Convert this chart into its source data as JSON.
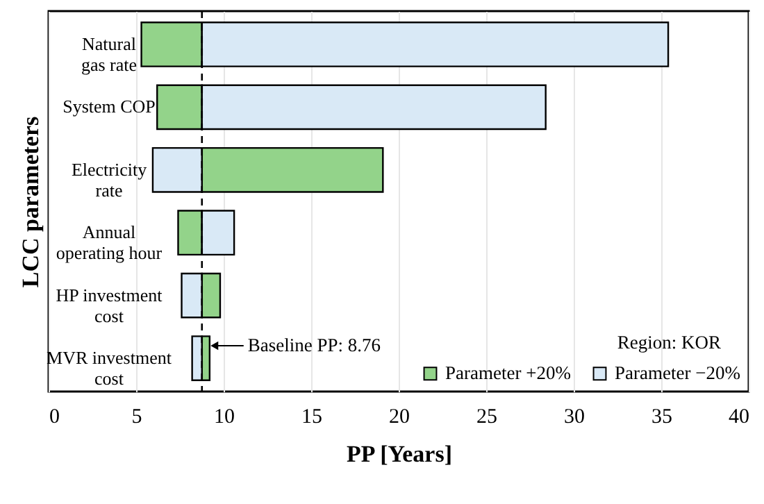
{
  "chart_data": {
    "type": "bar",
    "orientation": "horizontal",
    "xlabel": "PP [Years]",
    "ylabel": "LCC parameters",
    "categories": [
      "Natural\ngas rate",
      "System COP",
      "Electricity\nrate",
      "Annual\noperating hour",
      "HP investment\ncost",
      "MVR investment\ncost"
    ],
    "series": [
      {
        "name": "Parameter +20%",
        "color": "#93d38a",
        "base": [
          5.3,
          6.2,
          8.76,
          7.4,
          8.76,
          8.76
        ],
        "values": [
          3.46,
          2.56,
          10.34,
          1.36,
          1.04,
          0.44
        ]
      },
      {
        "name": "Parameter −20%",
        "color": "#d9e9f6",
        "base": [
          8.76,
          8.76,
          5.95,
          8.76,
          7.6,
          8.2
        ],
        "values": [
          26.64,
          19.64,
          2.81,
          1.84,
          1.16,
          0.56
        ]
      }
    ],
    "xlim": [
      0,
      40
    ],
    "xticks": [
      0,
      5,
      10,
      15,
      20,
      25,
      30,
      35,
      40
    ],
    "grid": "x",
    "legend": "bottom right",
    "ref_lines": [
      {
        "axis": "x",
        "value": 8.76,
        "label": "Baseline PP: 8.76",
        "line_style": "dashed",
        "color": "#000000"
      }
    ],
    "annotations": [
      "Region: KOR"
    ]
  }
}
